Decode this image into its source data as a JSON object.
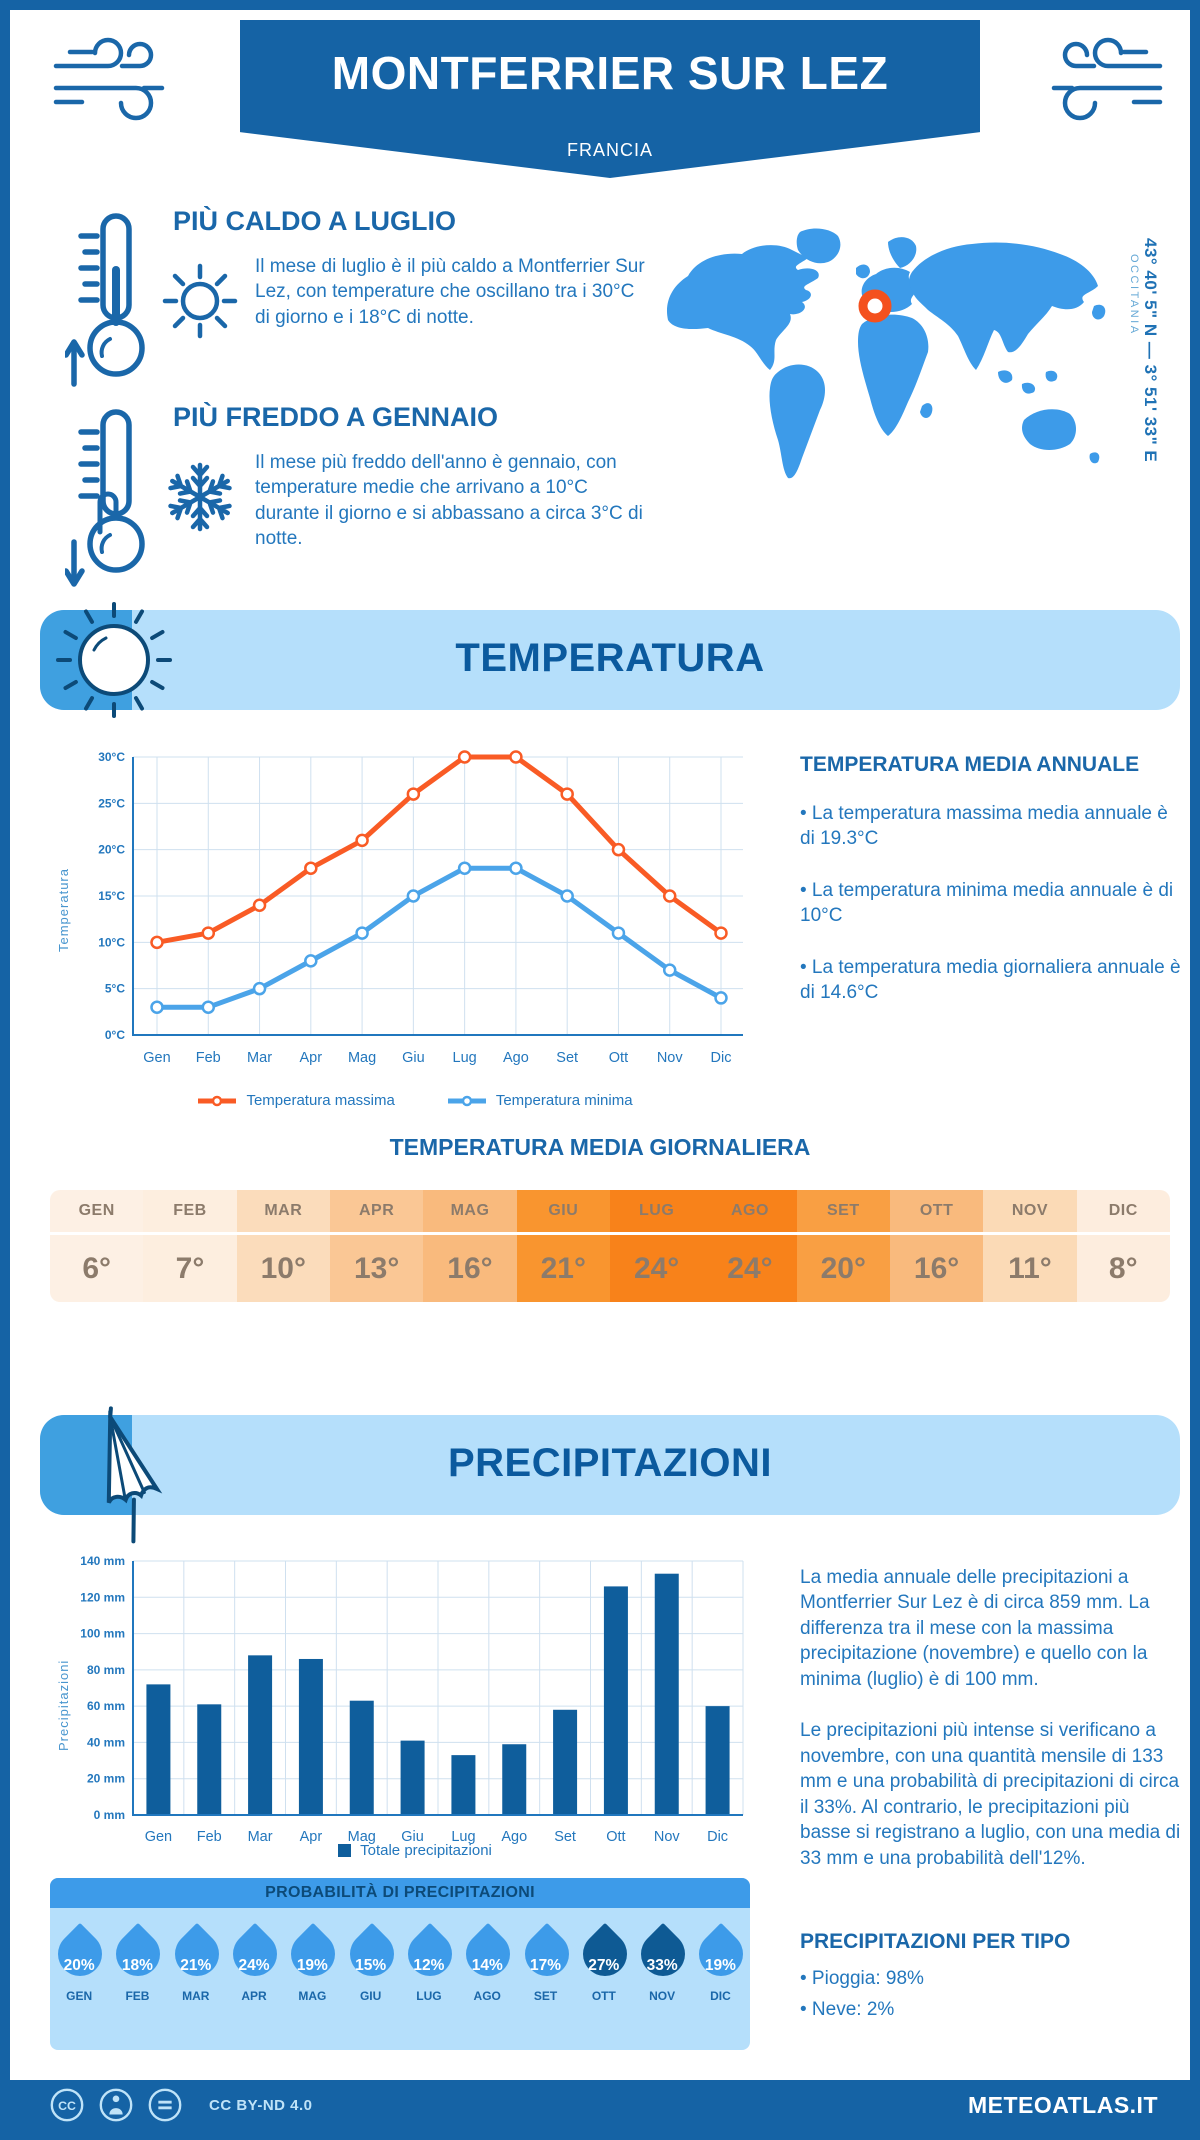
{
  "colors": {
    "navy": "#1563A5",
    "corner_blue": "#3FA0E0",
    "banner_light": "#B5DFFB",
    "map_blue": "#3D9BE9",
    "marker_orange": "#F4511E",
    "head_blue": "#1A67A9",
    "section_title": "#0B5A9E",
    "body_blue": "#2377BD",
    "axis_blue": "#2077BE",
    "grid_blue": "#CFE0EF",
    "temp_max": "#F95B25",
    "temp_min": "#4BA4E9",
    "bar_blue": "#0F5E9C",
    "table_text": "#8C7B6B",
    "icon_navy": "#0C4A78",
    "drop_blue": "#3D9BE9",
    "drop_dark": "#0E5A94",
    "cc_light": "#BFE3F8"
  },
  "header": {
    "title": "MONTFERRIER SUR LEZ",
    "subtitle": "FRANCIA"
  },
  "highlights": [
    {
      "title": "PIÙ CALDO A LUGLIO",
      "text": "Il mese di luglio è il più caldo a Montferrier Sur Lez, con temperature che oscillano tra i 30°C di giorno e i 18°C di notte."
    },
    {
      "title": "PIÙ FREDDO A GENNAIO",
      "text": "Il mese più freddo dell'anno è gennaio, con temperature medie che arrivano a 10°C durante il giorno e si abbassano a circa 3°C di notte."
    }
  ],
  "map": {
    "coordinates": "43° 40' 5\" N — 3° 51' 33\" E",
    "region": "OCCITANIA"
  },
  "sections": {
    "temperature": "TEMPERATURA",
    "precipitation": "PRECIPITAZIONI"
  },
  "chart_data": [
    {
      "type": "line",
      "categories": [
        "Gen",
        "Feb",
        "Mar",
        "Apr",
        "Mag",
        "Giu",
        "Lug",
        "Ago",
        "Set",
        "Ott",
        "Nov",
        "Dic"
      ],
      "series": [
        {
          "name": "Temperatura massima",
          "color": "#F95B25",
          "values": [
            10,
            11,
            14,
            18,
            21,
            26,
            30,
            30,
            26,
            20,
            15,
            11
          ]
        },
        {
          "name": "Temperatura minima",
          "color": "#4BA4E9",
          "values": [
            3,
            3,
            5,
            8,
            11,
            15,
            18,
            18,
            15,
            11,
            7,
            4
          ]
        }
      ],
      "ylabel": "Temperatura",
      "ylim": [
        0,
        30
      ],
      "ytick_step": 5,
      "ytick_suffix": "°C",
      "grid": true,
      "legend_position": "bottom"
    },
    {
      "type": "bar",
      "categories": [
        "Gen",
        "Feb",
        "Mar",
        "Apr",
        "Mag",
        "Giu",
        "Lug",
        "Ago",
        "Set",
        "Ott",
        "Nov",
        "Dic"
      ],
      "values": [
        72,
        61,
        88,
        86,
        63,
        41,
        33,
        39,
        58,
        126,
        133,
        60
      ],
      "series_name": "Totale precipitazioni",
      "bar_color": "#0F5E9C",
      "ylabel": "Precipitazioni",
      "ylim": [
        0,
        140
      ],
      "ytick_step": 20,
      "ytick_suffix": " mm",
      "grid": true,
      "legend_position": "bottom"
    }
  ],
  "annual_temp": {
    "heading": "TEMPERATURA MEDIA ANNUALE",
    "bullets": [
      "• La temperatura massima media annuale è di 19.3°C",
      "• La temperatura minima media annuale è di 10°C",
      "• La temperatura media giornaliera annuale è di 14.6°C"
    ]
  },
  "daily_temp_table": {
    "title": "TEMPERATURA MEDIA GIORNALIERA",
    "months": [
      "GEN",
      "FEB",
      "MAR",
      "APR",
      "MAG",
      "GIU",
      "LUG",
      "AGO",
      "SET",
      "OTT",
      "NOV",
      "DIC"
    ],
    "values": [
      "6°",
      "7°",
      "10°",
      "13°",
      "16°",
      "21°",
      "24°",
      "24°",
      "20°",
      "16°",
      "11°",
      "8°"
    ],
    "cell_colors": [
      "#FDF0E4",
      "#FDEEDF",
      "#FBDCBB",
      "#FAC795",
      "#F9BA7D",
      "#F9952F",
      "#F8821A",
      "#F8821A",
      "#F99F43",
      "#F9BA7D",
      "#FBDAB6",
      "#FDEDDE"
    ]
  },
  "precip_text": {
    "para1": "La media annuale delle precipitazioni a Montferrier Sur Lez è di circa 859 mm. La differenza tra il mese con la massima precipitazione (novembre) e quello con la minima (luglio) è di 100 mm.",
    "para2": "Le precipitazioni più intense si verificano a novembre, con una quantità mensile di 133 mm e una probabilità di precipitazioni di circa il 33%. Al contrario, le precipitazioni più basse si registrano a luglio, con una media di 33 mm e una probabilità dell'12%."
  },
  "probability": {
    "title": "PROBABILITÀ DI PRECIPITAZIONI",
    "months": [
      "GEN",
      "FEB",
      "MAR",
      "APR",
      "MAG",
      "GIU",
      "LUG",
      "AGO",
      "SET",
      "OTT",
      "NOV",
      "DIC"
    ],
    "values": [
      "20%",
      "18%",
      "21%",
      "24%",
      "19%",
      "15%",
      "12%",
      "14%",
      "17%",
      "27%",
      "33%",
      "19%"
    ],
    "drop_colors": [
      "#3D9BE9",
      "#3D9BE9",
      "#3D9BE9",
      "#3D9BE9",
      "#3D9BE9",
      "#3D9BE9",
      "#3D9BE9",
      "#3D9BE9",
      "#3D9BE9",
      "#0E5A94",
      "#0E5A94",
      "#3D9BE9"
    ]
  },
  "precip_type": {
    "heading": "PRECIPITAZIONI PER TIPO",
    "bullets": [
      "• Pioggia: 98%",
      "• Neve: 2%"
    ]
  },
  "footer": {
    "license": "CC BY-ND 4.0",
    "site": "METEOATLAS.IT"
  }
}
